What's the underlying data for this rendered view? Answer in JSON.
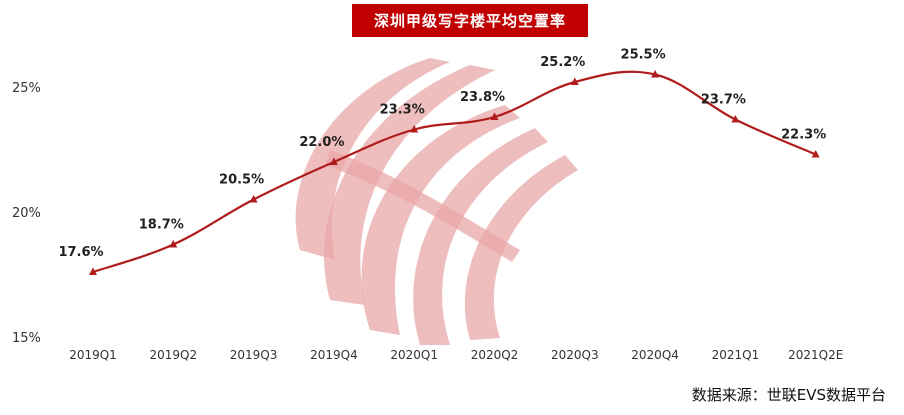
{
  "chart_data": {
    "type": "line",
    "title": "深圳甲级写字楼平均空置率",
    "categories": [
      "2019Q1",
      "2019Q2",
      "2019Q3",
      "2019Q4",
      "2020Q1",
      "2020Q2",
      "2020Q3",
      "2020Q4",
      "2021Q1",
      "2021Q2E"
    ],
    "series": [
      {
        "values": [
          17.6,
          18.7,
          20.5,
          22.0,
          23.3,
          23.8,
          25.2,
          25.5,
          23.7,
          22.3
        ],
        "data_labels": [
          "17.6%",
          "18.7%",
          "20.5%",
          "22.0%",
          "23.3%",
          "23.8%",
          "25.2%",
          "25.5%",
          "23.7%",
          "22.3%"
        ]
      }
    ],
    "y_ticks": [
      "15%",
      "20%",
      "25%"
    ],
    "ylim": [
      15,
      25
    ],
    "xlabel": "",
    "ylabel": "",
    "grid": false,
    "line_color": "#b01c1c",
    "title_bg": "#c00000",
    "source": "数据来源：世联EVS数据平台"
  }
}
